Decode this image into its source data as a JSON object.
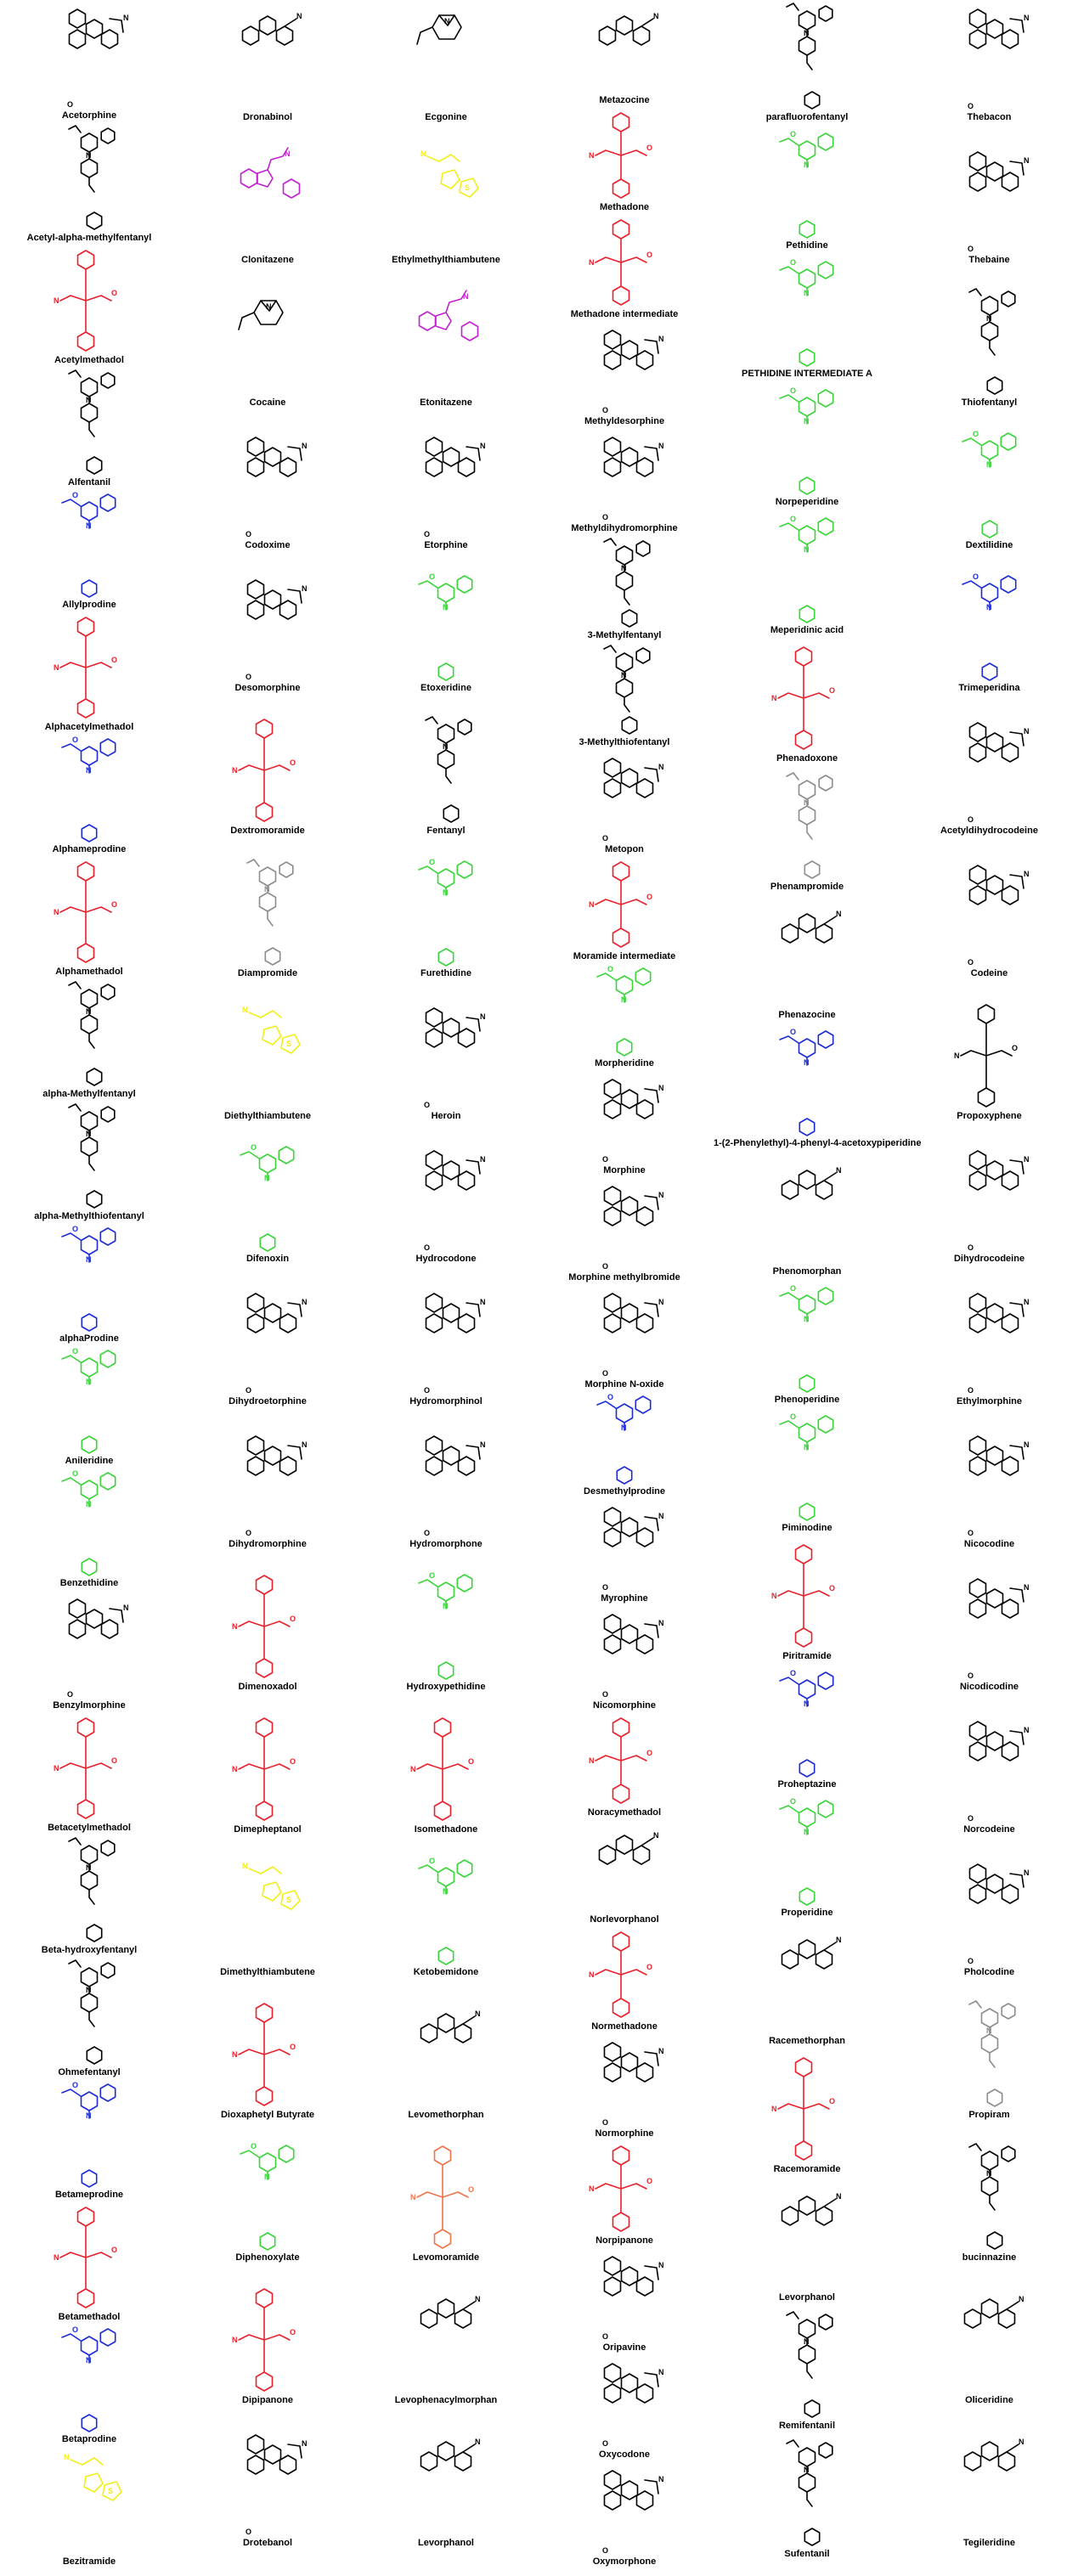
{
  "colors": {
    "black": "#000000",
    "red": "#e8202a",
    "blue": "#1b2bd6",
    "green": "#3ad43a",
    "yellow": "#f2ee1a",
    "magenta": "#c21fd1",
    "gray": "#8c8c8c",
    "orange": "#f0734a"
  },
  "columns": [
    {
      "entries": [
        {
          "name": "Acetorphine",
          "color": "black",
          "scaffold": "morphinan"
        },
        {
          "name": "Acetyl-alpha-methylfentanyl",
          "color": "black",
          "scaffold": "fentanyl"
        },
        {
          "name": "Acetylmethadol",
          "color": "red",
          "scaffold": "diphenyl"
        },
        {
          "name": "Alfentanil",
          "color": "black",
          "scaffold": "fentanyl"
        },
        {
          "name": "Allylprodine",
          "color": "blue",
          "scaffold": "prodine"
        },
        {
          "name": "Alphacetylmethadol",
          "color": "red",
          "scaffold": "diphenyl"
        },
        {
          "name": "Alphameprodine",
          "color": "blue",
          "scaffold": "prodine"
        },
        {
          "name": "Alphamethadol",
          "color": "red",
          "scaffold": "diphenyl"
        },
        {
          "name": "alpha-Methylfentanyl",
          "color": "black",
          "scaffold": "fentanyl"
        },
        {
          "name": "alpha-Methylthiofentanyl",
          "color": "black",
          "scaffold": "fentanyl"
        },
        {
          "name": "alphaProdine",
          "color": "blue",
          "scaffold": "prodine"
        },
        {
          "name": "Anileridine",
          "color": "green",
          "scaffold": "pethidine"
        },
        {
          "name": "Benzethidine",
          "color": "green",
          "scaffold": "pethidine"
        },
        {
          "name": "Benzylmorphine",
          "color": "black",
          "scaffold": "morphinan"
        },
        {
          "name": "Betacetylmethadol",
          "color": "red",
          "scaffold": "diphenyl"
        },
        {
          "name": "Beta-hydroxyfentanyl",
          "color": "black",
          "scaffold": "fentanyl"
        },
        {
          "name": "Ohmefentanyl",
          "color": "black",
          "scaffold": "fentanyl"
        },
        {
          "name": "Betameprodine",
          "color": "blue",
          "scaffold": "prodine"
        },
        {
          "name": "Betamethadol",
          "color": "red",
          "scaffold": "diphenyl"
        },
        {
          "name": "Betaprodine",
          "color": "blue",
          "scaffold": "prodine"
        },
        {
          "name": "Bezitramide",
          "color": "yellow",
          "scaffold": "thiambutene"
        }
      ]
    },
    {
      "entries": [
        {
          "name": "Dronabinol",
          "color": "black",
          "scaffold": "tricyclic"
        },
        {
          "name": "Clonitazene",
          "color": "magenta",
          "scaffold": "benzimidazole"
        },
        {
          "name": "Cocaine",
          "color": "black",
          "scaffold": "tropane"
        },
        {
          "name": "Codoxime",
          "color": "black",
          "scaffold": "morphinan"
        },
        {
          "name": "Desomorphine",
          "color": "black",
          "scaffold": "morphinan"
        },
        {
          "name": "Dextromoramide",
          "color": "red",
          "scaffold": "diphenyl"
        },
        {
          "name": "Diampromide",
          "color": "gray",
          "scaffold": "fentanyl"
        },
        {
          "name": "Diethylthiambutene",
          "color": "yellow",
          "scaffold": "thiambutene"
        },
        {
          "name": "Difenoxin",
          "color": "green",
          "scaffold": "pethidine"
        },
        {
          "name": "Dihydroetorphine",
          "color": "black",
          "scaffold": "morphinan"
        },
        {
          "name": "Dihydromorphine",
          "color": "black",
          "scaffold": "morphinan"
        },
        {
          "name": "Dimenoxadol",
          "color": "red",
          "scaffold": "diphenyl"
        },
        {
          "name": "Dimepheptanol",
          "color": "red",
          "scaffold": "diphenyl"
        },
        {
          "name": "Dimethylthiambutene",
          "color": "yellow",
          "scaffold": "thiambutene"
        },
        {
          "name": "Dioxaphetyl Butyrate",
          "color": "red",
          "scaffold": "diphenyl"
        },
        {
          "name": "Diphenoxylate",
          "color": "green",
          "scaffold": "pethidine"
        },
        {
          "name": "Dipipanone",
          "color": "red",
          "scaffold": "diphenyl"
        },
        {
          "name": "Drotebanol",
          "color": "black",
          "scaffold": "morphinan"
        }
      ]
    },
    {
      "entries": [
        {
          "name": "Ecgonine",
          "color": "black",
          "scaffold": "tropane"
        },
        {
          "name": "Ethylmethylthiambutene",
          "color": "yellow",
          "scaffold": "thiambutene"
        },
        {
          "name": "Etonitazene",
          "color": "magenta",
          "scaffold": "benzimidazole"
        },
        {
          "name": "Etorphine",
          "color": "black",
          "scaffold": "morphinan"
        },
        {
          "name": "Etoxeridine",
          "color": "green",
          "scaffold": "pethidine"
        },
        {
          "name": "Fentanyl",
          "color": "black",
          "scaffold": "fentanyl"
        },
        {
          "name": "Furethidine",
          "color": "green",
          "scaffold": "pethidine"
        },
        {
          "name": "Heroin",
          "color": "black",
          "scaffold": "morphinan"
        },
        {
          "name": "Hydrocodone",
          "color": "black",
          "scaffold": "morphinan"
        },
        {
          "name": "Hydromorphinol",
          "color": "black",
          "scaffold": "morphinan"
        },
        {
          "name": "Hydromorphone",
          "color": "black",
          "scaffold": "morphinan"
        },
        {
          "name": "Hydroxypethidine",
          "color": "green",
          "scaffold": "pethidine"
        },
        {
          "name": "Isomethadone",
          "color": "red",
          "scaffold": "diphenyl"
        },
        {
          "name": "Ketobemidone",
          "color": "green",
          "scaffold": "pethidine"
        },
        {
          "name": "Levomethorphan",
          "color": "black",
          "scaffold": "tricyclic"
        },
        {
          "name": "Levomoramide",
          "color": "orange",
          "scaffold": "diphenyl"
        },
        {
          "name": "Levophenacylmorphan",
          "color": "black",
          "scaffold": "tricyclic"
        },
        {
          "name": "Levorphanol",
          "color": "black",
          "scaffold": "tricyclic"
        }
      ]
    },
    {
      "entries": [
        {
          "name": "Metazocine",
          "color": "black",
          "scaffold": "tricyclic"
        },
        {
          "name": "Methadone",
          "color": "red",
          "scaffold": "diphenyl"
        },
        {
          "name": "Methadone intermediate",
          "color": "red",
          "scaffold": "diphenyl"
        },
        {
          "name": "Methyldesorphine",
          "color": "black",
          "scaffold": "morphinan"
        },
        {
          "name": "Methyldihydromorphine",
          "color": "black",
          "scaffold": "morphinan"
        },
        {
          "name": "3-Methylfentanyl",
          "color": "black",
          "scaffold": "fentanyl"
        },
        {
          "name": "3-Methylthiofentanyl",
          "color": "black",
          "scaffold": "fentanyl"
        },
        {
          "name": "Metopon",
          "color": "black",
          "scaffold": "morphinan"
        },
        {
          "name": "Moramide intermediate",
          "color": "red",
          "scaffold": "diphenyl"
        },
        {
          "name": "Morpheridine",
          "color": "green",
          "scaffold": "pethidine"
        },
        {
          "name": "Morphine",
          "color": "black",
          "scaffold": "morphinan"
        },
        {
          "name": "Morphine methylbromide",
          "color": "black",
          "scaffold": "morphinan"
        },
        {
          "name": "Morphine N-oxide",
          "color": "black",
          "scaffold": "morphinan"
        },
        {
          "name": "Desmethylprodine",
          "color": "blue",
          "scaffold": "prodine"
        },
        {
          "name": "Myrophine",
          "color": "black",
          "scaffold": "morphinan"
        },
        {
          "name": "Nicomorphine",
          "color": "black",
          "scaffold": "morphinan"
        },
        {
          "name": "Noracymethadol",
          "color": "red",
          "scaffold": "diphenyl"
        },
        {
          "name": "Norlevorphanol",
          "color": "black",
          "scaffold": "tricyclic"
        },
        {
          "name": "Normethadone",
          "color": "red",
          "scaffold": "diphenyl"
        },
        {
          "name": "Normorphine",
          "color": "black",
          "scaffold": "morphinan"
        },
        {
          "name": "Norpipanone",
          "color": "red",
          "scaffold": "diphenyl"
        },
        {
          "name": "Oripavine",
          "color": "black",
          "scaffold": "morphinan"
        },
        {
          "name": "Oxycodone",
          "color": "black",
          "scaffold": "morphinan"
        },
        {
          "name": "Oxymorphone",
          "color": "black",
          "scaffold": "morphinan"
        }
      ]
    },
    {
      "entries": [
        {
          "name": "parafluorofentanyl",
          "color": "black",
          "scaffold": "fentanyl"
        },
        {
          "name": "Pethidine",
          "color": "green",
          "scaffold": "pethidine"
        },
        {
          "name": "PETHIDINE INTERMEDIATE A",
          "color": "green",
          "scaffold": "pethidine"
        },
        {
          "name": "Norpeperidine",
          "color": "green",
          "scaffold": "pethidine"
        },
        {
          "name": "Meperidinic acid",
          "color": "green",
          "scaffold": "pethidine"
        },
        {
          "name": "Phenadoxone",
          "color": "red",
          "scaffold": "diphenyl"
        },
        {
          "name": "Phenampromide",
          "color": "gray",
          "scaffold": "fentanyl"
        },
        {
          "name": "Phenazocine",
          "color": "black",
          "scaffold": "tricyclic"
        },
        {
          "name": "1-(2-Phenylethyl)-4-phenyl-4-acetoxypiperidine",
          "color": "blue",
          "scaffold": "prodine"
        },
        {
          "name": "Phenomorphan",
          "color": "black",
          "scaffold": "tricyclic"
        },
        {
          "name": "Phenoperidine",
          "color": "green",
          "scaffold": "pethidine"
        },
        {
          "name": "Piminodine",
          "color": "green",
          "scaffold": "pethidine"
        },
        {
          "name": "Piritramide",
          "color": "red",
          "scaffold": "diphenyl"
        },
        {
          "name": "Proheptazine",
          "color": "blue",
          "scaffold": "prodine"
        },
        {
          "name": "Properidine",
          "color": "green",
          "scaffold": "pethidine"
        },
        {
          "name": "Racemethorphan",
          "color": "black",
          "scaffold": "tricyclic"
        },
        {
          "name": "Racemoramide",
          "color": "red",
          "scaffold": "diphenyl"
        },
        {
          "name": "Levorphanol",
          "color": "black",
          "scaffold": "tricyclic"
        },
        {
          "name": "Remifentanil",
          "color": "black",
          "scaffold": "fentanyl"
        },
        {
          "name": "Sufentanil",
          "color": "black",
          "scaffold": "fentanyl"
        }
      ]
    },
    {
      "entries": [
        {
          "name": "Thebacon",
          "color": "black",
          "scaffold": "morphinan"
        },
        {
          "name": "Thebaine",
          "color": "black",
          "scaffold": "morphinan"
        },
        {
          "name": "Thiofentanyl",
          "color": "black",
          "scaffold": "fentanyl"
        },
        {
          "name": "Dextilidine",
          "color": "green",
          "scaffold": "pethidine"
        },
        {
          "name": "Trimeperidina",
          "color": "blue",
          "scaffold": "prodine"
        },
        {
          "name": "Acetyldihydrocodeine",
          "color": "black",
          "scaffold": "morphinan"
        },
        {
          "name": "Codeine",
          "color": "black",
          "scaffold": "morphinan"
        },
        {
          "name": "Propoxyphene",
          "color": "black",
          "scaffold": "diphenyl"
        },
        {
          "name": "Dihydrocodeine",
          "color": "black",
          "scaffold": "morphinan"
        },
        {
          "name": "Ethylmorphine",
          "color": "black",
          "scaffold": "morphinan"
        },
        {
          "name": "Nicocodine",
          "color": "black",
          "scaffold": "morphinan"
        },
        {
          "name": "Nicodicodine",
          "color": "black",
          "scaffold": "morphinan"
        },
        {
          "name": "Norcodeine",
          "color": "black",
          "scaffold": "morphinan"
        },
        {
          "name": "Pholcodine",
          "color": "black",
          "scaffold": "morphinan"
        },
        {
          "name": "Propiram",
          "color": "gray",
          "scaffold": "fentanyl"
        },
        {
          "name": "bucinnazine",
          "color": "black",
          "scaffold": "fentanyl"
        },
        {
          "name": "Oliceridine",
          "color": "black",
          "scaffold": "tricyclic"
        },
        {
          "name": "Tegileridine",
          "color": "black",
          "scaffold": "tricyclic"
        }
      ]
    }
  ]
}
